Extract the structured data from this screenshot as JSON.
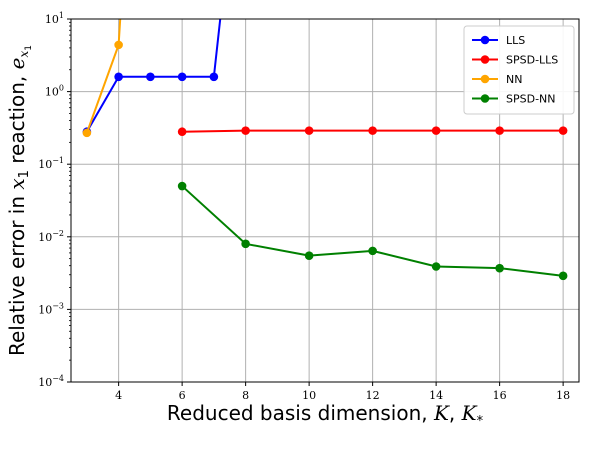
{
  "chart_data": {
    "type": "line",
    "xlabel": "Reduced basis dimension, K, K*",
    "ylabel": "Relative error in x1 reaction, ex1",
    "y_scale": "log",
    "xlim": [
      2.5,
      18.5
    ],
    "ylim": [
      0.0001,
      10
    ],
    "grid": true,
    "legend_position": "top-right",
    "x_ticks": [
      4,
      6,
      8,
      10,
      12,
      14,
      16,
      18
    ],
    "y_ticks": [
      {
        "value": 0.0001,
        "base": "10",
        "exp": "−4"
      },
      {
        "value": 0.001,
        "base": "10",
        "exp": "−3"
      },
      {
        "value": 0.01,
        "base": "10",
        "exp": "−2"
      },
      {
        "value": 0.1,
        "base": "10",
        "exp": "−1"
      },
      {
        "value": 1,
        "base": "10",
        "exp": "0"
      },
      {
        "value": 10,
        "base": "10",
        "exp": "1"
      }
    ],
    "series": [
      {
        "name": "LLS",
        "color": "#0000ff",
        "x": [
          3,
          4,
          5,
          6,
          7,
          7.2
        ],
        "y": [
          0.28,
          1.6,
          1.6,
          1.6,
          1.6,
          10
        ]
      },
      {
        "name": "SPSD-LLS",
        "color": "#ff0000",
        "x": [
          6,
          8,
          10,
          12,
          14,
          16,
          18
        ],
        "y": [
          0.28,
          0.29,
          0.29,
          0.29,
          0.29,
          0.29,
          0.29
        ]
      },
      {
        "name": "NN",
        "color": "#ffa500",
        "x": [
          3,
          4,
          4.05
        ],
        "y": [
          0.27,
          4.4,
          10
        ]
      },
      {
        "name": "SPSD-NN",
        "color": "#008000",
        "x": [
          6,
          8,
          10,
          12,
          14,
          16,
          18
        ],
        "y": [
          0.05,
          0.008,
          0.0055,
          0.0064,
          0.0039,
          0.0037,
          0.0029
        ]
      }
    ]
  }
}
